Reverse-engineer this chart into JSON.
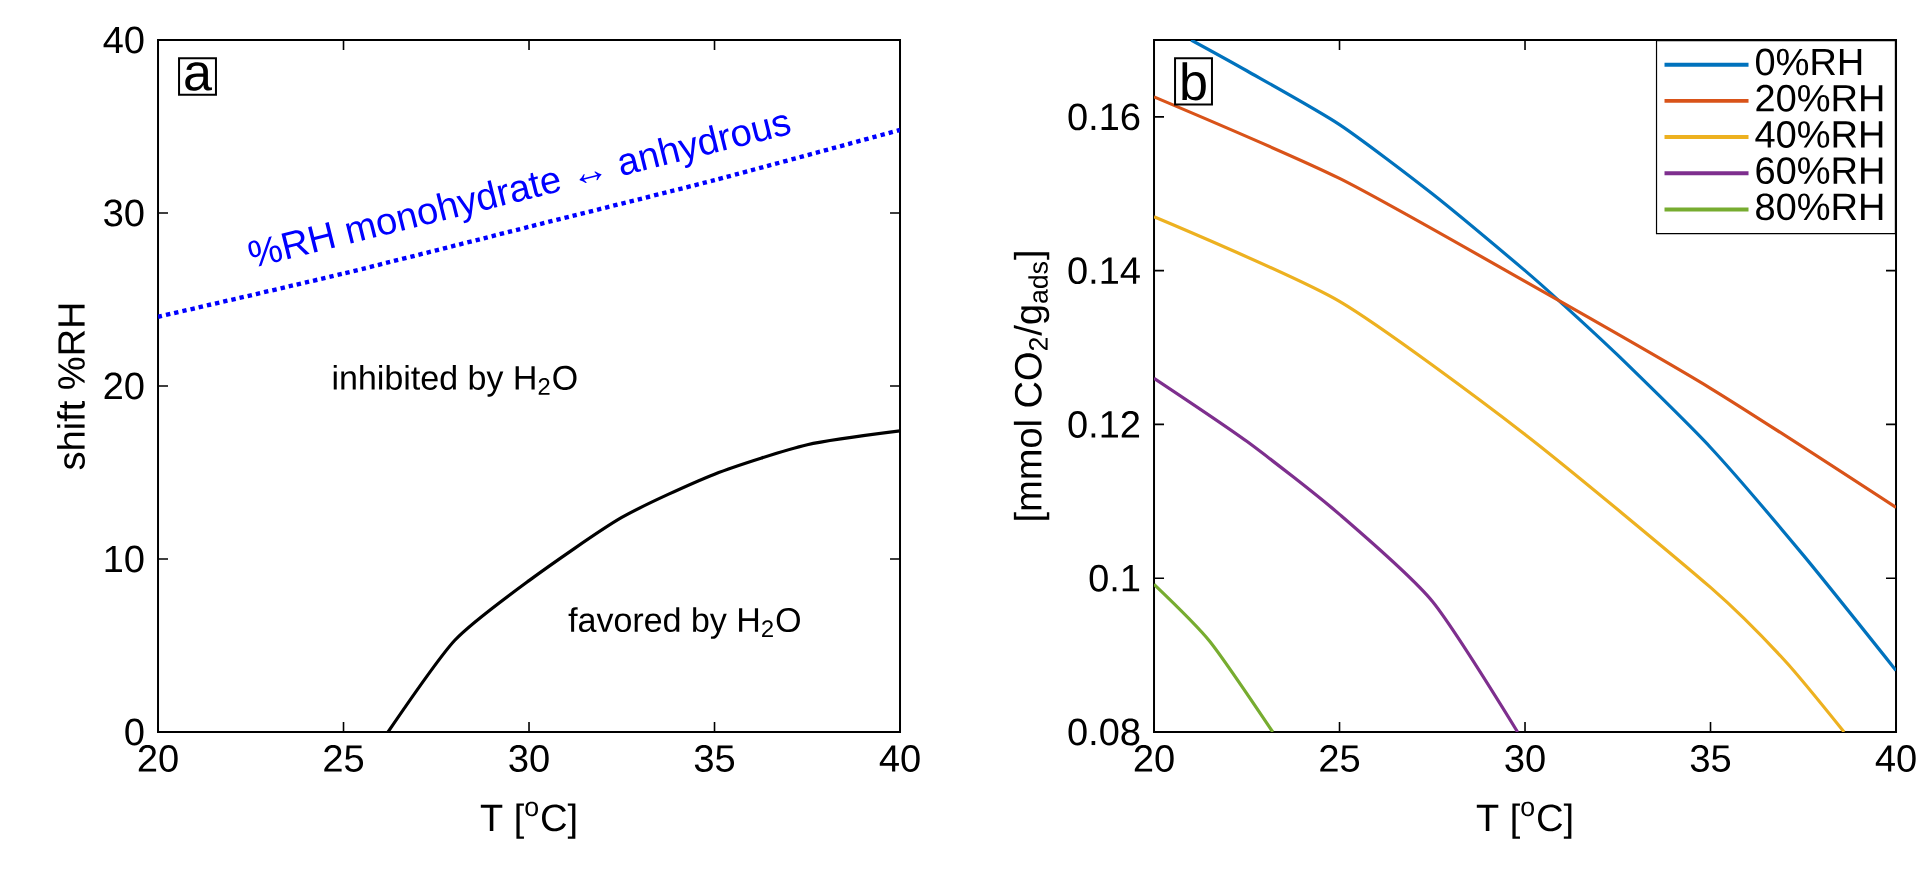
{
  "chart_data": [
    {
      "type": "line",
      "xlabel": "T [$^{o}$C]",
      "ylabel": "shift  %RH",
      "xlim": [
        20,
        40
      ],
      "ylim": [
        0,
        40
      ],
      "xticks": [
        20,
        25,
        30,
        35,
        40
      ],
      "yticks": [
        0,
        10,
        20,
        30,
        40
      ],
      "series": [
        {
          "color": "#0000ff",
          "line_style": "dotted",
          "x": [
            20,
            25,
            30,
            35,
            40
          ],
          "values": [
            24.0,
            26.5,
            29.2,
            31.9,
            34.8
          ]
        },
        {
          "color": "#000000",
          "line_style": "solid",
          "x": [
            26.2,
            28,
            30,
            32.5,
            35,
            37.5,
            40
          ],
          "values": [
            0,
            5.3,
            8.75,
            12.4,
            14.9,
            16.6,
            17.4
          ]
        }
      ],
      "annotations": [
        "a",
        {
          "text": "%RH monohydrate ↔ anhydrous",
          "x": 30,
          "y": 29.2
        },
        "inhibited by H$_{2}$O",
        "favored by H$_{2}$O"
      ]
    },
    {
      "type": "line",
      "xlabel": "T [$^{o}$C]",
      "ylabel": "[mmol CO$_{2}$/g$_{ads}$]",
      "xlim": [
        20,
        40
      ],
      "ylim": [
        0.08,
        0.17
      ],
      "xticks": [
        20,
        25,
        30,
        35,
        40
      ],
      "yticks": [
        0.08,
        0.1,
        0.12,
        0.14,
        0.16
      ],
      "legend": "top right",
      "series": [
        {
          "name": "0%RH",
          "color": "#0072bd",
          "x": [
            21,
            22.5,
            25,
            27.5,
            30,
            31.05,
            32.5,
            35,
            37.5,
            40
          ],
          "values": [
            0.17,
            0.166,
            0.159,
            0.15,
            0.14,
            0.1355,
            0.129,
            0.117,
            0.103,
            0.088
          ]
        },
        {
          "name": "20%RH",
          "color": "#d95319",
          "x": [
            20,
            25,
            30,
            35,
            40
          ],
          "values": [
            0.1626,
            0.152,
            0.1386,
            0.1247,
            0.1092
          ]
        },
        {
          "name": "40%RH",
          "color": "#edb120",
          "x": [
            20,
            25,
            30,
            35,
            37,
            38.6
          ],
          "values": [
            0.147,
            0.136,
            0.1187,
            0.0988,
            0.0893,
            0.08
          ]
        },
        {
          "name": "60%RH",
          "color": "#7e2f8e",
          "x": [
            20,
            22.5,
            25,
            27.5,
            29.8
          ],
          "values": [
            0.126,
            0.1178,
            0.1083,
            0.097,
            0.08
          ]
        },
        {
          "name": "80%RH",
          "color": "#77ac30",
          "x": [
            20,
            21.5,
            23.2
          ],
          "values": [
            0.0992,
            0.0918,
            0.08
          ]
        }
      ],
      "annotations": [
        "b"
      ]
    }
  ]
}
